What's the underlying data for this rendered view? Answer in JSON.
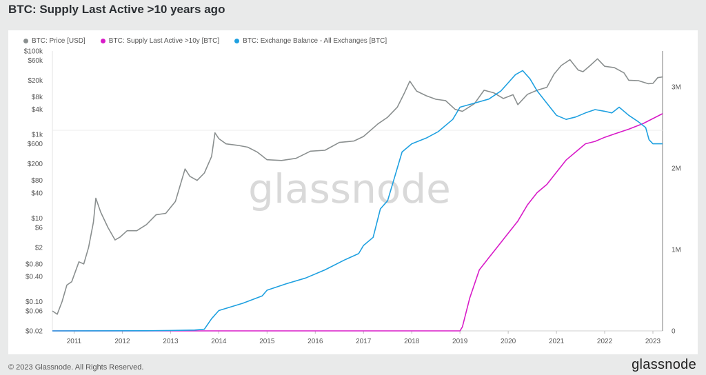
{
  "page": {
    "title": "BTC: Supply Last Active >10 years ago",
    "copyright": "© 2023 Glassnode. All Rights Reserved.",
    "brand": "glassnode",
    "watermark": "glassnode"
  },
  "chart_data": {
    "type": "line",
    "title": "BTC: Supply Last Active >10 years ago",
    "x_ticks": [
      "2011",
      "2012",
      "2013",
      "2014",
      "2015",
      "2016",
      "2017",
      "2018",
      "2019",
      "2020",
      "2021",
      "2022",
      "2023"
    ],
    "x_range": [
      2010.55,
      2023.2
    ],
    "left_axis": {
      "scale": "log",
      "range": [
        0.02,
        100000
      ],
      "ticks": [
        {
          "value": 100000,
          "label": "$100k"
        },
        {
          "value": 60000,
          "label": "$60k"
        },
        {
          "value": 20000,
          "label": "$20k"
        },
        {
          "value": 8000,
          "label": "$8k"
        },
        {
          "value": 4000,
          "label": "$4k"
        },
        {
          "value": 1000,
          "label": "$1k"
        },
        {
          "value": 600,
          "label": "$600"
        },
        {
          "value": 200,
          "label": "$200"
        },
        {
          "value": 80,
          "label": "$80"
        },
        {
          "value": 40,
          "label": "$40"
        },
        {
          "value": 10,
          "label": "$10"
        },
        {
          "value": 6,
          "label": "$6"
        },
        {
          "value": 2,
          "label": "$2"
        },
        {
          "value": 0.8,
          "label": "$0.80"
        },
        {
          "value": 0.4,
          "label": "$0.40"
        },
        {
          "value": 0.1,
          "label": "$0.10"
        },
        {
          "value": 0.06,
          "label": "$0.06"
        },
        {
          "value": 0.02,
          "label": "$0.02"
        }
      ]
    },
    "right_axis": {
      "scale": "linear",
      "range": [
        0,
        3000000
      ],
      "ticks": [
        {
          "value": 0,
          "label": "0"
        },
        {
          "value": 1000000,
          "label": "1M"
        },
        {
          "value": 2000000,
          "label": "2M"
        },
        {
          "value": 3000000,
          "label": "3M"
        }
      ]
    },
    "legend_position": "top-left",
    "series": [
      {
        "name": "BTC: Price [USD]",
        "color": "#8a8f8f",
        "axis": "left",
        "points": [
          [
            2010.55,
            0.06
          ],
          [
            2010.65,
            0.05
          ],
          [
            2010.75,
            0.1
          ],
          [
            2010.85,
            0.25
          ],
          [
            2010.95,
            0.3
          ],
          [
            2011.1,
            0.9
          ],
          [
            2011.2,
            0.8
          ],
          [
            2011.3,
            2
          ],
          [
            2011.4,
            8
          ],
          [
            2011.45,
            30
          ],
          [
            2011.55,
            14
          ],
          [
            2011.7,
            6
          ],
          [
            2011.85,
            3
          ],
          [
            2011.95,
            3.5
          ],
          [
            2012.1,
            5
          ],
          [
            2012.3,
            5
          ],
          [
            2012.5,
            7
          ],
          [
            2012.7,
            12
          ],
          [
            2012.9,
            13
          ],
          [
            2013.1,
            25
          ],
          [
            2013.3,
            150
          ],
          [
            2013.4,
            100
          ],
          [
            2013.55,
            80
          ],
          [
            2013.7,
            120
          ],
          [
            2013.85,
            300
          ],
          [
            2013.92,
            1100
          ],
          [
            2014.0,
            800
          ],
          [
            2014.15,
            600
          ],
          [
            2014.4,
            550
          ],
          [
            2014.6,
            500
          ],
          [
            2014.8,
            380
          ],
          [
            2015.0,
            250
          ],
          [
            2015.3,
            240
          ],
          [
            2015.6,
            270
          ],
          [
            2015.9,
            400
          ],
          [
            2016.2,
            420
          ],
          [
            2016.5,
            650
          ],
          [
            2016.8,
            700
          ],
          [
            2017.0,
            900
          ],
          [
            2017.3,
            1800
          ],
          [
            2017.5,
            2600
          ],
          [
            2017.7,
            4500
          ],
          [
            2017.85,
            10000
          ],
          [
            2017.96,
            19000
          ],
          [
            2018.1,
            11000
          ],
          [
            2018.3,
            8500
          ],
          [
            2018.5,
            7000
          ],
          [
            2018.7,
            6500
          ],
          [
            2018.9,
            4000
          ],
          [
            2019.05,
            3600
          ],
          [
            2019.3,
            5500
          ],
          [
            2019.5,
            11500
          ],
          [
            2019.7,
            10000
          ],
          [
            2019.9,
            7300
          ],
          [
            2020.1,
            9000
          ],
          [
            2020.2,
            5200
          ],
          [
            2020.4,
            9200
          ],
          [
            2020.6,
            11500
          ],
          [
            2020.8,
            13500
          ],
          [
            2020.95,
            28000
          ],
          [
            2021.1,
            45000
          ],
          [
            2021.28,
            62000
          ],
          [
            2021.45,
            35000
          ],
          [
            2021.55,
            32000
          ],
          [
            2021.7,
            45000
          ],
          [
            2021.85,
            65000
          ],
          [
            2022.0,
            43000
          ],
          [
            2022.2,
            40000
          ],
          [
            2022.4,
            30000
          ],
          [
            2022.5,
            20000
          ],
          [
            2022.7,
            19500
          ],
          [
            2022.9,
            16500
          ],
          [
            2023.0,
            16800
          ],
          [
            2023.1,
            23000
          ],
          [
            2023.2,
            24000
          ]
        ]
      },
      {
        "name": "BTC: Supply Last Active >10y [BTC]",
        "color": "#d81bc8",
        "axis": "right",
        "points": [
          [
            2010.55,
            0
          ],
          [
            2019.0,
            0
          ],
          [
            2019.05,
            50000
          ],
          [
            2019.2,
            400000
          ],
          [
            2019.4,
            750000
          ],
          [
            2019.6,
            900000
          ],
          [
            2019.8,
            1050000
          ],
          [
            2020.0,
            1200000
          ],
          [
            2020.2,
            1350000
          ],
          [
            2020.4,
            1550000
          ],
          [
            2020.6,
            1700000
          ],
          [
            2020.8,
            1800000
          ],
          [
            2021.0,
            1950000
          ],
          [
            2021.2,
            2100000
          ],
          [
            2021.4,
            2200000
          ],
          [
            2021.6,
            2300000
          ],
          [
            2021.8,
            2330000
          ],
          [
            2022.0,
            2380000
          ],
          [
            2022.2,
            2420000
          ],
          [
            2022.5,
            2480000
          ],
          [
            2022.8,
            2550000
          ],
          [
            2023.0,
            2610000
          ],
          [
            2023.2,
            2670000
          ]
        ]
      },
      {
        "name": "BTC: Exchange Balance - All Exchanges [BTC]",
        "color": "#1ea0e0",
        "axis": "right",
        "points": [
          [
            2010.55,
            0
          ],
          [
            2012.5,
            2000
          ],
          [
            2013.0,
            5000
          ],
          [
            2013.5,
            10000
          ],
          [
            2013.7,
            20000
          ],
          [
            2013.85,
            150000
          ],
          [
            2014.0,
            250000
          ],
          [
            2014.5,
            340000
          ],
          [
            2014.9,
            430000
          ],
          [
            2015.0,
            500000
          ],
          [
            2015.4,
            580000
          ],
          [
            2015.8,
            650000
          ],
          [
            2016.2,
            750000
          ],
          [
            2016.6,
            870000
          ],
          [
            2016.9,
            950000
          ],
          [
            2017.0,
            1050000
          ],
          [
            2017.2,
            1150000
          ],
          [
            2017.35,
            1500000
          ],
          [
            2017.5,
            1600000
          ],
          [
            2017.65,
            1900000
          ],
          [
            2017.8,
            2200000
          ],
          [
            2018.0,
            2300000
          ],
          [
            2018.3,
            2370000
          ],
          [
            2018.55,
            2450000
          ],
          [
            2018.85,
            2600000
          ],
          [
            2019.0,
            2750000
          ],
          [
            2019.3,
            2800000
          ],
          [
            2019.6,
            2850000
          ],
          [
            2019.85,
            2950000
          ],
          [
            2020.0,
            3050000
          ],
          [
            2020.15,
            3150000
          ],
          [
            2020.3,
            3200000
          ],
          [
            2020.45,
            3100000
          ],
          [
            2020.6,
            2950000
          ],
          [
            2020.8,
            2800000
          ],
          [
            2021.0,
            2650000
          ],
          [
            2021.2,
            2600000
          ],
          [
            2021.4,
            2630000
          ],
          [
            2021.6,
            2680000
          ],
          [
            2021.8,
            2720000
          ],
          [
            2022.0,
            2700000
          ],
          [
            2022.15,
            2680000
          ],
          [
            2022.3,
            2750000
          ],
          [
            2022.5,
            2650000
          ],
          [
            2022.7,
            2570000
          ],
          [
            2022.85,
            2500000
          ],
          [
            2022.92,
            2350000
          ],
          [
            2023.0,
            2300000
          ],
          [
            2023.2,
            2300000
          ]
        ]
      }
    ]
  }
}
